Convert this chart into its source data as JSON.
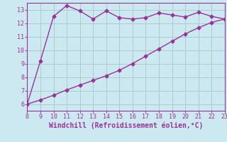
{
  "xlabel": "Windchill (Refroidissement éolien,°C)",
  "line1_x": [
    8,
    9,
    10,
    11,
    12,
    13,
    14,
    15,
    16,
    17,
    18,
    19,
    20,
    21,
    22,
    23
  ],
  "line1_y": [
    6.0,
    9.2,
    12.5,
    13.3,
    12.9,
    12.3,
    12.9,
    12.4,
    12.3,
    12.4,
    12.75,
    12.6,
    12.45,
    12.8,
    12.5,
    12.3
  ],
  "line2_x": [
    8,
    9,
    10,
    11,
    12,
    13,
    14,
    15,
    16,
    17,
    18,
    19,
    20,
    21,
    22,
    23
  ],
  "line2_y": [
    6.0,
    6.3,
    6.65,
    7.05,
    7.4,
    7.75,
    8.1,
    8.5,
    9.0,
    9.55,
    10.1,
    10.65,
    11.2,
    11.65,
    12.05,
    12.3
  ],
  "line_color": "#993399",
  "bg_color": "#cce8f0",
  "grid_color": "#aacccc",
  "xlim": [
    8,
    23
  ],
  "ylim": [
    5.5,
    13.5
  ],
  "yticks": [
    6,
    7,
    8,
    9,
    10,
    11,
    12,
    13
  ],
  "xticks": [
    8,
    9,
    10,
    11,
    12,
    13,
    14,
    15,
    16,
    17,
    18,
    19,
    20,
    21,
    22,
    23
  ],
  "marker": "D",
  "marker_size": 2.5,
  "line_width": 1.0,
  "xlabel_color": "#993399",
  "tick_color": "#993399",
  "tick_fontsize": 6.0,
  "xlabel_fontsize": 7.0
}
